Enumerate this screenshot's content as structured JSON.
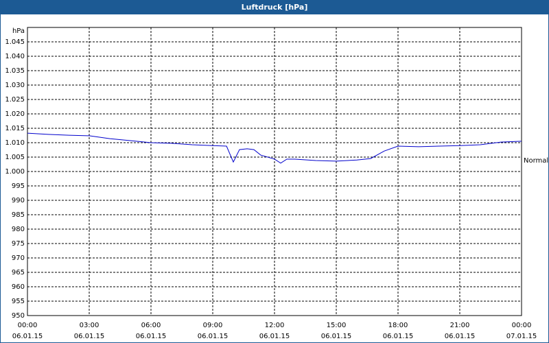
{
  "chart_data": {
    "type": "line",
    "title": "Luftdruck [hPa]",
    "y_unit": "hPa",
    "annotation": "Normal",
    "x": [
      0,
      1,
      2,
      3,
      4,
      5,
      6,
      7,
      8,
      9,
      9.67,
      10,
      10.3,
      10.67,
      11,
      11.33,
      12,
      12.3,
      12.6,
      13,
      14,
      15,
      16,
      16.67,
      17.33,
      18,
      19,
      20,
      21,
      22,
      23,
      24
    ],
    "series": [
      {
        "name": "Luftdruck",
        "color": "#0000cc",
        "values": [
          1013.3,
          1012.9,
          1012.6,
          1012.4,
          1011.4,
          1010.7,
          1010.0,
          1009.8,
          1009.3,
          1009.0,
          1008.8,
          1003.3,
          1007.6,
          1007.9,
          1007.6,
          1005.7,
          1004.3,
          1002.9,
          1004.3,
          1004.3,
          1003.8,
          1003.6,
          1004.0,
          1004.5,
          1007.1,
          1008.8,
          1008.6,
          1008.8,
          1009.0,
          1009.3,
          1010.2,
          1010.5
        ]
      }
    ],
    "xlim": [
      0,
      24
    ],
    "xticks": [
      {
        "value": 0,
        "label": "00:00",
        "date": "06.01.15"
      },
      {
        "value": 3,
        "label": "03:00",
        "date": "06.01.15"
      },
      {
        "value": 6,
        "label": "06:00",
        "date": "06.01.15"
      },
      {
        "value": 9,
        "label": "09:00",
        "date": "06.01.15"
      },
      {
        "value": 12,
        "label": "12:00",
        "date": "06.01.15"
      },
      {
        "value": 15,
        "label": "15:00",
        "date": "06.01.15"
      },
      {
        "value": 18,
        "label": "18:00",
        "date": "06.01.15"
      },
      {
        "value": 21,
        "label": "21:00",
        "date": "06.01.15"
      },
      {
        "value": 24,
        "label": "00:00",
        "date": "07.01.15"
      }
    ],
    "ylim": [
      950,
      1050
    ],
    "yticks": [
      950,
      955,
      960,
      965,
      970,
      975,
      980,
      985,
      990,
      995,
      {
        "value": 1000,
        "label": "1.000"
      },
      {
        "value": 1005,
        "label": "1.005"
      },
      {
        "value": 1010,
        "label": "1.010"
      },
      {
        "value": 1015,
        "label": "1.015"
      },
      {
        "value": 1020,
        "label": "1.020"
      },
      {
        "value": 1025,
        "label": "1.025"
      },
      {
        "value": 1030,
        "label": "1.030"
      },
      {
        "value": 1035,
        "label": "1.035"
      },
      {
        "value": 1040,
        "label": "1.040"
      },
      {
        "value": 1045,
        "label": "1.045"
      }
    ],
    "grid": true
  }
}
